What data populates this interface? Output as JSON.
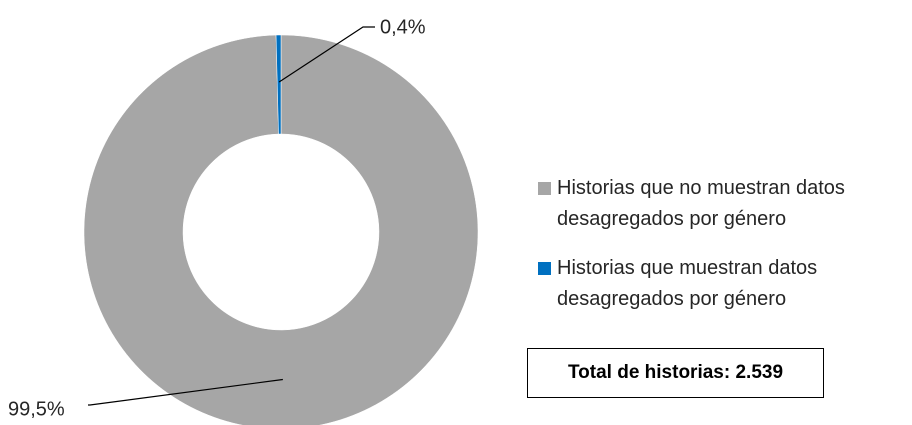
{
  "chart_data": {
    "type": "donut",
    "categories": [
      "Historias que no muestran datos desagregados por género",
      "Historias que muestran datos desagregados por género"
    ],
    "values": [
      99.5,
      0.4
    ],
    "value_labels": [
      "99,5%",
      "0,4%"
    ],
    "colors": [
      "#a6a6a6",
      "#0070c0"
    ],
    "annotation": "Total de historias: 2.539",
    "legend": "right"
  }
}
